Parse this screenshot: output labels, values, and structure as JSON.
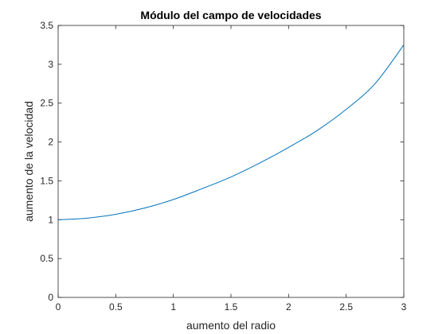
{
  "chart_data": {
    "type": "line",
    "title": "Módulo del campo de velocidades",
    "xlabel": "aumento del radio",
    "ylabel": "aumento de la velocidad",
    "xlim": [
      0,
      3
    ],
    "ylim": [
      0,
      3.5
    ],
    "xticks": [
      0,
      0.5,
      1,
      1.5,
      2,
      2.5,
      3
    ],
    "yticks": [
      0,
      0.5,
      1,
      1.5,
      2,
      2.5,
      3,
      3.5
    ],
    "xtick_labels": [
      "0",
      "0.5",
      "1",
      "1.5",
      "2",
      "2.5",
      "3"
    ],
    "ytick_labels": [
      "0",
      "0.5",
      "1",
      "1.5",
      "2",
      "2.5",
      "3",
      "3.5"
    ],
    "grid": false,
    "legend": null,
    "series": [
      {
        "color": "#0072BD",
        "x": [
          0,
          0.25,
          0.5,
          0.75,
          1,
          1.25,
          1.5,
          1.75,
          2,
          2.25,
          2.5,
          2.75,
          3
        ],
        "y": [
          1.0,
          1.02,
          1.07,
          1.15,
          1.26,
          1.4,
          1.55,
          1.73,
          1.93,
          2.15,
          2.42,
          2.75,
          3.25
        ]
      }
    ]
  }
}
